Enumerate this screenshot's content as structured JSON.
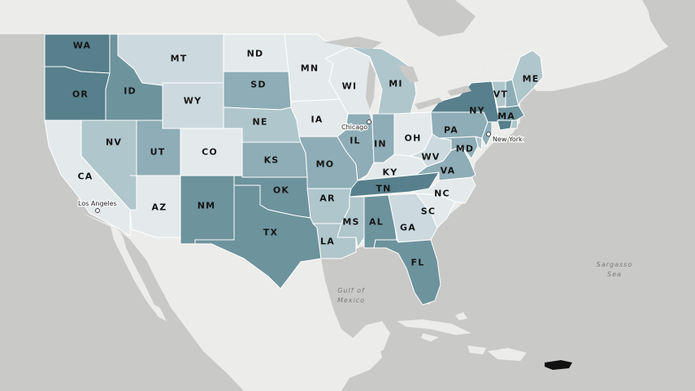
{
  "colors": {
    "water": "#c9c9c7",
    "land": "#ececea",
    "border": "#ffffff",
    "island": "#111111",
    "shade_1": "#e4eaec",
    "shade_2": "#ccdadf",
    "shade_3": "#afc6cc",
    "shade_4": "#8eadb6",
    "shade_5": "#6d939d",
    "shade_6": "#57808c"
  },
  "states": {
    "WA": {
      "label": "WA",
      "level": 6
    },
    "OR": {
      "label": "OR",
      "level": 6
    },
    "CA": {
      "label": "CA",
      "level": 1
    },
    "NV": {
      "label": "NV",
      "level": 3
    },
    "ID": {
      "label": "ID",
      "level": 5
    },
    "MT": {
      "label": "MT",
      "level": 2
    },
    "WY": {
      "label": "WY",
      "level": 2
    },
    "UT": {
      "label": "UT",
      "level": 4
    },
    "CO": {
      "label": "CO",
      "level": 1
    },
    "AZ": {
      "label": "AZ",
      "level": 1
    },
    "NM": {
      "label": "NM",
      "level": 5
    },
    "ND": {
      "label": "ND",
      "level": 1
    },
    "SD": {
      "label": "SD",
      "level": 4
    },
    "NE": {
      "label": "NE",
      "level": 3
    },
    "KS": {
      "label": "KS",
      "level": 4
    },
    "OK": {
      "label": "OK",
      "level": 5
    },
    "TX": {
      "label": "TX",
      "level": 5
    },
    "MN": {
      "label": "MN",
      "level": 1
    },
    "IA": {
      "label": "IA",
      "level": 1
    },
    "MO": {
      "label": "MO",
      "level": 4
    },
    "AR": {
      "label": "AR",
      "level": 3
    },
    "LA": {
      "label": "LA",
      "level": 3
    },
    "WI": {
      "label": "WI",
      "level": 1
    },
    "IL": {
      "label": "IL",
      "level": 4
    },
    "MI": {
      "label": "MI",
      "level": 3
    },
    "IN": {
      "label": "IN",
      "level": 4
    },
    "OH": {
      "label": "OH",
      "level": 1
    },
    "KY": {
      "label": "KY",
      "level": 1
    },
    "TN": {
      "label": "TN",
      "level": 6
    },
    "MS": {
      "label": "MS",
      "level": 3
    },
    "AL": {
      "label": "AL",
      "level": 5
    },
    "GA": {
      "label": "GA",
      "level": 2
    },
    "FL": {
      "label": "FL",
      "level": 5
    },
    "SC": {
      "label": "SC",
      "level": 1
    },
    "NC": {
      "label": "NC",
      "level": 1
    },
    "VA": {
      "label": "VA",
      "level": 4
    },
    "WV": {
      "label": "WV",
      "level": 2
    },
    "MD": {
      "label": "MD",
      "level": 4
    },
    "PA": {
      "label": "PA",
      "level": 4
    },
    "NY": {
      "label": "NY",
      "level": 6
    },
    "VT": {
      "label": "VT",
      "level": 3
    },
    "NH": {
      "label": "",
      "level": 4
    },
    "ME": {
      "label": "ME",
      "level": 3
    },
    "MA": {
      "label": "MA",
      "level": 5
    },
    "CT": {
      "label": "",
      "level": 6
    },
    "RI": {
      "label": "",
      "level": 3
    },
    "NJ": {
      "label": "",
      "level": 4
    },
    "DE": {
      "label": "",
      "level": 3
    }
  },
  "cities": {
    "chicago": {
      "label": "Chicago"
    },
    "new_york": {
      "label": "New York"
    },
    "los_angeles": {
      "label": "Los Angeles"
    }
  },
  "water_labels": {
    "gulf_line1": "Gulf of",
    "gulf_line2": "Mexico",
    "sargasso_line1": "Sargasso",
    "sargasso_line2": "Sea"
  }
}
